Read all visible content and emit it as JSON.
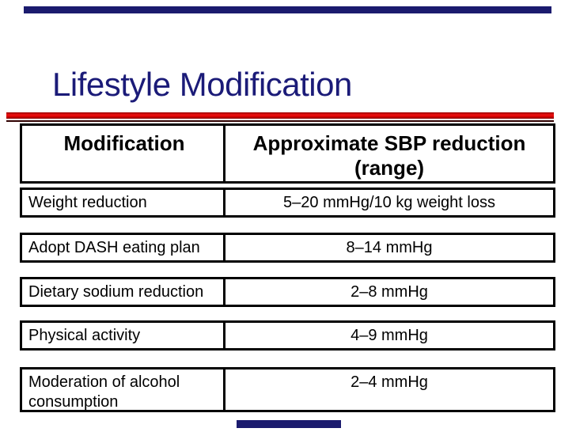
{
  "slide": {
    "title": "Lifestyle Modification",
    "colors": {
      "title_text": "#1b1b78",
      "accent_bar_navy": "#1b1b6e",
      "rule_red": "#d40000",
      "table_border": "#000000",
      "background": "#ffffff"
    }
  },
  "table": {
    "headers": {
      "col1": "Modification",
      "col2": "Approximate SBP reduction (range)"
    },
    "rows": [
      {
        "modification": "Weight reduction",
        "reduction": "5–20 mmHg/10 kg weight loss"
      },
      {
        "modification": "Adopt DASH eating plan",
        "reduction": "8–14 mmHg"
      },
      {
        "modification": "Dietary sodium reduction",
        "reduction": "2–8 mmHg"
      },
      {
        "modification": "Physical activity",
        "reduction": "4–9 mmHg"
      },
      {
        "modification": "Moderation of alcohol consumption",
        "reduction": "2–4 mmHg"
      }
    ]
  }
}
